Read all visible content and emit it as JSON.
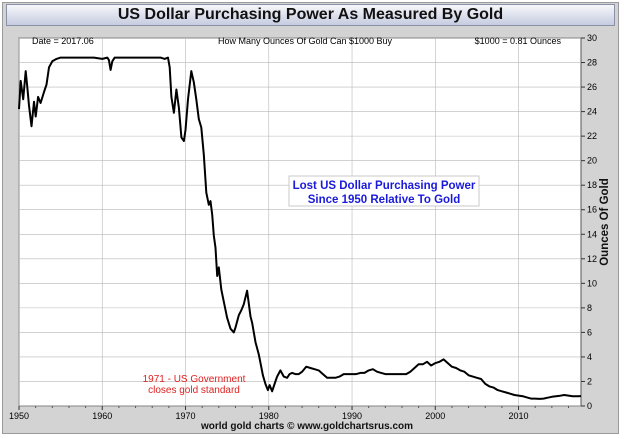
{
  "chart_data": {
    "type": "line",
    "title": "US Dollar Purchasing Power As Measured By Gold",
    "subtitle": "How Many Ounces Of Gold Can $1000 Buy",
    "date_label": "Date = 2017.06",
    "current_value_label": "$1000 = 0.81 Ounces",
    "ylabel": "Ounces Of Gold",
    "xlabel": "",
    "xlim": [
      1950,
      2017.5
    ],
    "ylim": [
      0,
      30
    ],
    "x_ticks": [
      "1950",
      "1960",
      "1970",
      "1980",
      "1990",
      "2000",
      "2010"
    ],
    "y_ticks": [
      "0",
      "2",
      "4",
      "6",
      "8",
      "10",
      "12",
      "14",
      "16",
      "18",
      "20",
      "22",
      "24",
      "26",
      "28",
      "30"
    ],
    "grid": true,
    "annotation_blue": [
      "Lost US Dollar Purchasing Power",
      "Since 1950 Relative To Gold"
    ],
    "annotation_red": [
      "1971 - US Government",
      "closes gold standard"
    ],
    "footer": "world gold charts © www.goldchartsrus.com",
    "colors": {
      "line": "#000000",
      "blue_text": "#1a1adb",
      "red_text": "#e02020",
      "grid": "#b8b8b8",
      "frame": "#d3d3d3"
    },
    "series": [
      {
        "x": [
          1950.0,
          1950.2,
          1950.5,
          1950.8,
          1951.0,
          1951.2,
          1951.5,
          1951.8,
          1952.0,
          1952.3,
          1952.6,
          1953.0,
          1953.3,
          1953.6,
          1954.0,
          1954.5,
          1955.0,
          1956.0,
          1957.0,
          1958.0,
          1959.0,
          1960.0,
          1960.6,
          1960.8,
          1961.0,
          1961.2,
          1961.5,
          1962.0,
          1963.0,
          1964.0,
          1965.0,
          1966.0,
          1967.0,
          1967.5,
          1967.9,
          1968.1,
          1968.3,
          1968.6,
          1968.9,
          1969.2,
          1969.5,
          1969.8,
          1970.0,
          1970.3,
          1970.7,
          1971.0,
          1971.3,
          1971.6,
          1971.9,
          1972.2,
          1972.5,
          1972.8,
          1973.0,
          1973.2,
          1973.4,
          1973.6,
          1973.8,
          1974.0,
          1974.3,
          1974.6,
          1975.0,
          1975.4,
          1975.8,
          1976.0,
          1976.4,
          1976.7,
          1977.0,
          1977.4,
          1977.8,
          1978.0,
          1978.4,
          1978.8,
          1979.0,
          1979.3,
          1979.6,
          1979.9,
          1980.1,
          1980.4,
          1980.8,
          1981.0,
          1981.4,
          1981.8,
          1982.2,
          1982.5,
          1982.8,
          1983.2,
          1983.6,
          1984.0,
          1984.5,
          1985.0,
          1985.5,
          1986.0,
          1986.5,
          1987.0,
          1987.5,
          1988.0,
          1988.5,
          1989.0,
          1989.5,
          1990.0,
          1990.5,
          1991.0,
          1991.5,
          1992.0,
          1992.5,
          1993.0,
          1993.5,
          1994.0,
          1994.5,
          1995.0,
          1995.5,
          1996.0,
          1996.5,
          1997.0,
          1997.5,
          1998.0,
          1998.5,
          1999.0,
          1999.5,
          2000.0,
          2000.5,
          2001.0,
          2001.5,
          2002.0,
          2002.5,
          2003.0,
          2003.5,
          2004.0,
          2004.5,
          2005.0,
          2005.5,
          2006.0,
          2006.5,
          2007.0,
          2007.5,
          2008.0,
          2008.5,
          2009.0,
          2009.5,
          2010.0,
          2010.5,
          2011.0,
          2011.5,
          2012.0,
          2012.5,
          2013.0,
          2013.5,
          2014.0,
          2014.5,
          2015.0,
          2015.5,
          2016.0,
          2016.5,
          2017.0,
          2017.5
        ],
        "y": [
          24.2,
          26.5,
          25.0,
          27.3,
          26.0,
          24.5,
          22.8,
          24.8,
          23.6,
          25.2,
          24.7,
          25.6,
          26.2,
          27.6,
          28.1,
          28.3,
          28.4,
          28.4,
          28.4,
          28.4,
          28.4,
          28.3,
          28.4,
          28.2,
          27.4,
          28.1,
          28.4,
          28.4,
          28.4,
          28.4,
          28.4,
          28.4,
          28.4,
          28.3,
          28.4,
          27.6,
          25.2,
          23.9,
          25.8,
          24.3,
          21.9,
          21.6,
          22.5,
          25.0,
          27.3,
          26.4,
          25.0,
          23.4,
          22.7,
          20.5,
          17.4,
          16.4,
          16.7,
          15.6,
          13.9,
          12.9,
          10.6,
          11.3,
          9.5,
          8.5,
          7.2,
          6.3,
          6.0,
          6.4,
          7.4,
          7.8,
          8.3,
          9.4,
          7.3,
          6.8,
          5.2,
          4.2,
          3.5,
          2.5,
          1.8,
          1.3,
          1.7,
          1.2,
          2.0,
          2.4,
          2.9,
          2.4,
          2.3,
          2.6,
          2.7,
          2.6,
          2.6,
          2.8,
          3.2,
          3.1,
          3.0,
          2.9,
          2.6,
          2.3,
          2.3,
          2.3,
          2.4,
          2.6,
          2.6,
          2.6,
          2.6,
          2.7,
          2.7,
          2.9,
          3.0,
          2.8,
          2.7,
          2.6,
          2.6,
          2.6,
          2.6,
          2.6,
          2.6,
          2.8,
          3.1,
          3.4,
          3.4,
          3.6,
          3.3,
          3.5,
          3.6,
          3.8,
          3.5,
          3.2,
          3.1,
          2.9,
          2.8,
          2.5,
          2.4,
          2.3,
          2.2,
          1.8,
          1.6,
          1.5,
          1.3,
          1.2,
          1.1,
          1.0,
          0.9,
          0.85,
          0.8,
          0.7,
          0.6,
          0.6,
          0.58,
          0.6,
          0.68,
          0.75,
          0.8,
          0.84,
          0.9,
          0.85,
          0.8,
          0.8,
          0.81
        ]
      }
    ]
  }
}
